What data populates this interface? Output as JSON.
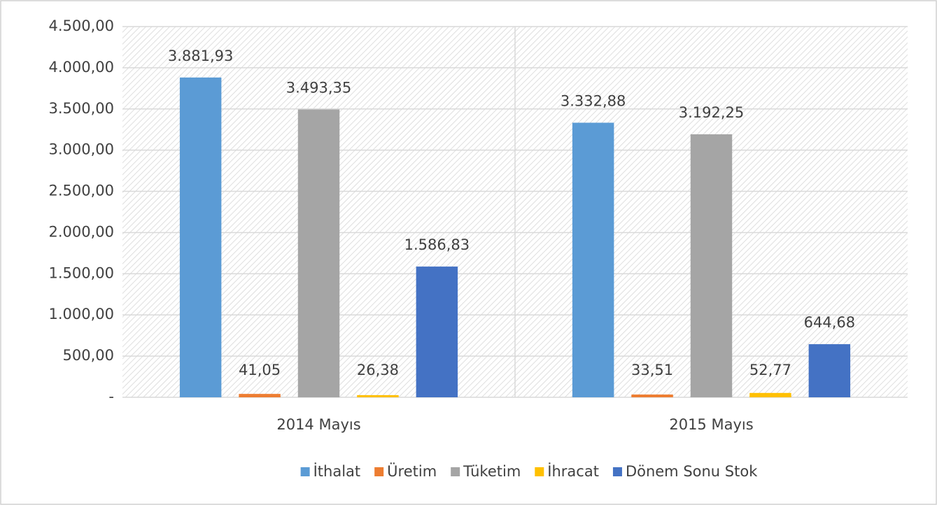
{
  "chart_data": {
    "type": "bar",
    "categories": [
      "2014 Mayıs",
      "2015 Mayıs"
    ],
    "series": [
      {
        "name": "İthalat",
        "color": "#5b9bd5",
        "values": [
          3881.93,
          3332.88
        ],
        "value_labels": [
          "3.881,93",
          "3.332,88"
        ]
      },
      {
        "name": "Üretim",
        "color": "#ed7d31",
        "values": [
          41.05,
          33.51
        ],
        "value_labels": [
          "41,05",
          "33,51"
        ]
      },
      {
        "name": "Tüketim",
        "color": "#a5a5a5",
        "values": [
          3493.35,
          3192.25
        ],
        "value_labels": [
          "3.493,35",
          "3.192,25"
        ]
      },
      {
        "name": "İhracat",
        "color": "#ffc000",
        "values": [
          26.38,
          52.77
        ],
        "value_labels": [
          "26,38",
          "52,77"
        ]
      },
      {
        "name": "Dönem Sonu Stok",
        "color": "#4472c4",
        "values": [
          1586.83,
          644.68
        ],
        "value_labels": [
          "1.586,83",
          "644,68"
        ]
      }
    ],
    "ylim": [
      0,
      4500
    ],
    "yticks": [
      {
        "value": 0,
        "label": "-"
      },
      {
        "value": 500,
        "label": "500,00"
      },
      {
        "value": 1000,
        "label": "1.000,00"
      },
      {
        "value": 1500,
        "label": "1.500,00"
      },
      {
        "value": 2000,
        "label": "2.000,00"
      },
      {
        "value": 2500,
        "label": "2.500,00"
      },
      {
        "value": 3000,
        "label": "3.000,00"
      },
      {
        "value": 3500,
        "label": "3.500,00"
      },
      {
        "value": 4000,
        "label": "4.000,00"
      },
      {
        "value": 4500,
        "label": "4.500,00"
      }
    ],
    "grid": true,
    "legend": "bottom"
  }
}
